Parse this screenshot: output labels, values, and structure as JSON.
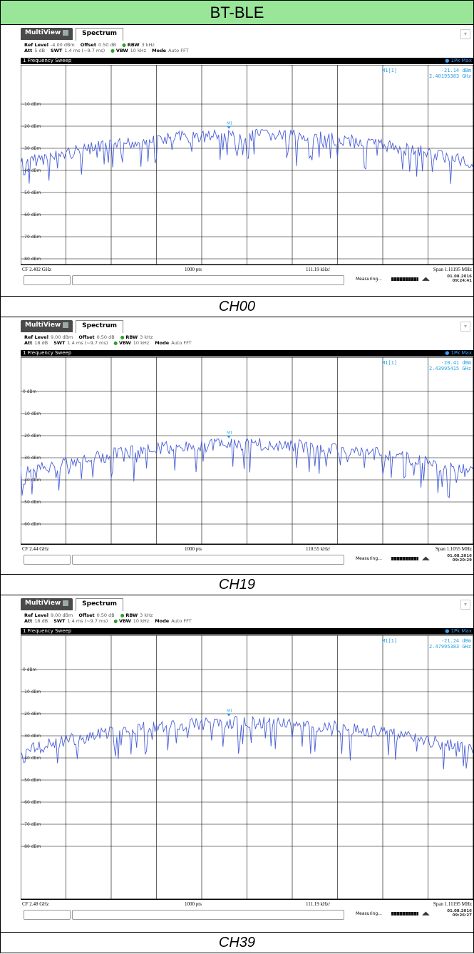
{
  "title": "BT-BLE",
  "panels": [
    {
      "caption": "CH00",
      "tabs": {
        "multiview": "MultiView",
        "spectrum": "Spectrum"
      },
      "ref_level_label": "Ref Level",
      "ref_level": "-4.00 dBm",
      "offset_label": "Offset",
      "offset": "0.50 dB",
      "rbw_label": "RBW",
      "rbw": "3 kHz",
      "att_label": "Att",
      "att": "5 dB",
      "swt_label": "SWT",
      "swt": "1.4 ms (~9.7 ms)",
      "vbw_label": "VBW",
      "vbw": "10 kHz",
      "mode_label": "Mode",
      "mode": "Auto FFT",
      "sweep_title": "1 Frequency Sweep",
      "peak_mode": "● 1Pk Max",
      "marker_name": "M1[1]",
      "marker_level": "-21.14 dBm",
      "marker_freq": "2.40195383 GHz",
      "marker_label": "M1",
      "y_labels": [
        "-10 dBm",
        "-20 dBm",
        "-30 dBm",
        "-40 dBm",
        "-50 dBm",
        "-60 dBm",
        "-70 dBm",
        "-80 dBm",
        "-90 dBm",
        "-100 dBm"
      ],
      "cf": "CF 2.402 GHz",
      "pts": "1000 pts",
      "div": "111.19 kHz/",
      "span": "Span 1.11195 MHz",
      "measuring": "Measuring...",
      "date": "01.08.2016",
      "time": "09:24:41",
      "colors": {
        "trace": "#4a5fd8",
        "marker": "#2aa0e0"
      }
    },
    {
      "caption": "CH19",
      "tabs": {
        "multiview": "MultiView",
        "spectrum": "Spectrum"
      },
      "ref_level_label": "Ref Level",
      "ref_level": "9.00 dBm",
      "offset_label": "Offset",
      "offset": "0.50 dB",
      "rbw_label": "RBW",
      "rbw": "3 kHz",
      "att_label": "Att",
      "att": "18 dB",
      "swt_label": "SWT",
      "swt": "1.4 ms (~9.7 ms)",
      "vbw_label": "VBW",
      "vbw": "10 kHz",
      "mode_label": "Mode",
      "mode": "Auto FFT",
      "sweep_title": "1 Frequency Sweep",
      "peak_mode": "● 1Pk Max",
      "marker_name": "M1[1]",
      "marker_level": "-20.41 dBm",
      "marker_freq": "2.43995415 GHz",
      "marker_label": "M1",
      "y_labels": [
        "0 dBm",
        "-10 dBm",
        "-20 dBm",
        "-30 dBm",
        "-40 dBm",
        "-50 dBm",
        "-60 dBm",
        "-70 dBm",
        "-80 dBm"
      ],
      "cf": "CF 2.44 GHz",
      "pts": "1000 pts",
      "div": "110.55 kHz/",
      "span": "Span 1.1055 MHz",
      "measuring": "Measuring...",
      "date": "01.08.2016",
      "time": "09:20:29",
      "colors": {
        "trace": "#4a5fd8",
        "marker": "#2aa0e0"
      }
    },
    {
      "caption": "CH39",
      "tabs": {
        "multiview": "MultiView",
        "spectrum": "Spectrum"
      },
      "ref_level_label": "Ref Level",
      "ref_level": "9.00 dBm",
      "offset_label": "Offset",
      "offset": "0.50 dB",
      "rbw_label": "RBW",
      "rbw": "3 kHz",
      "att_label": "Att",
      "att": "18 dB",
      "swt_label": "SWT",
      "swt": "1.4 ms (~9.7 ms)",
      "vbw_label": "VBW",
      "vbw": "10 kHz",
      "mode_label": "Mode",
      "mode": "Auto FFT",
      "sweep_title": "1 Frequency Sweep",
      "peak_mode": "● 1Pk Max",
      "marker_name": "M1[1]",
      "marker_level": "-21.24 dBm",
      "marker_freq": "2.47995383 GHz",
      "marker_label": "M1",
      "y_labels": [
        "0 dBm",
        "-10 dBm",
        "-20 dBm",
        "-30 dBm",
        "-40 dBm",
        "-50 dBm",
        "-60 dBm",
        "-70 dBm",
        "-80 dBm"
      ],
      "cf": "CF 2.48 GHz",
      "pts": "1000 pts",
      "div": "111.19 kHz/",
      "span": "Span 1.11195 MHz",
      "measuring": "Measuring...",
      "date": "01.08.2016",
      "time": "09:26:27",
      "colors": {
        "trace": "#4a5fd8",
        "marker": "#2aa0e0"
      }
    }
  ]
}
